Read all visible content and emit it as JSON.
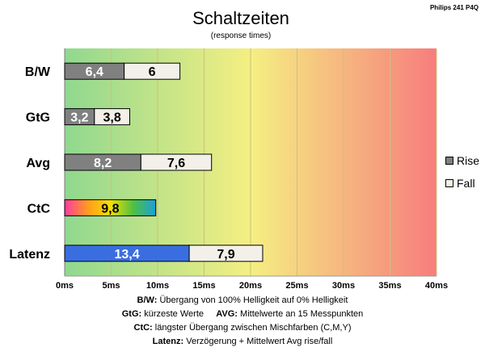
{
  "header": {
    "title": "Schaltzeiten",
    "subtitle": "(response times)",
    "model": "Philips 241  P4Q"
  },
  "chart_data": {
    "type": "bar",
    "orientation": "horizontal",
    "stacked": true,
    "categories": [
      "B/W",
      "GtG",
      "Avg",
      "CtC",
      "Latenz"
    ],
    "series": [
      {
        "name": "Rise",
        "values": [
          6.4,
          3.2,
          8.2,
          null,
          13.4
        ]
      },
      {
        "name": "Fall",
        "values": [
          6,
          3.8,
          7.6,
          null,
          7.9
        ]
      }
    ],
    "single_values": {
      "CtC": 9.8,
      "Latenz": 13.4
    },
    "value_labels": [
      [
        "6,4",
        "6"
      ],
      [
        "3,2",
        "3,8"
      ],
      [
        "8,2",
        "7,6"
      ],
      [
        "9,8"
      ],
      [
        "13,4",
        "7,9"
      ]
    ],
    "xlim": [
      0,
      40
    ],
    "xticks": [
      "0ms",
      "5ms",
      "10ms",
      "15ms",
      "20ms",
      "25ms",
      "30ms",
      "35ms",
      "40ms"
    ],
    "grid": true,
    "legend_position": "right",
    "colors": {
      "rise": "#808080",
      "fall": "#f2f0e8",
      "latenz_rise": "#3a6ee0",
      "background_start": "#8fd88f",
      "background_mid": "#f5ef82",
      "background_end": "#f77d7d",
      "ctc_gradient": [
        "#ff3aa0",
        "#ff9a20",
        "#f5e000",
        "#50c040",
        "#1aa0d8"
      ]
    }
  },
  "notes": [
    {
      "bold": "B/W:",
      "text": " Übergang von 100% Helligkeit auf 0% Helligkeit"
    },
    {
      "bold": "GtG:",
      "text": " kürzeste Werte",
      "bold2": "AVG:",
      "text2": " Mittelwerte an 15 Messpunkten"
    },
    {
      "bold": "CtC:",
      "text": " längster Übergang zwischen Mischfarben (C,M,Y)"
    },
    {
      "bold": "Latenz:",
      "text": " Verzögerung  + Mittelwert Avg rise/fall"
    }
  ]
}
